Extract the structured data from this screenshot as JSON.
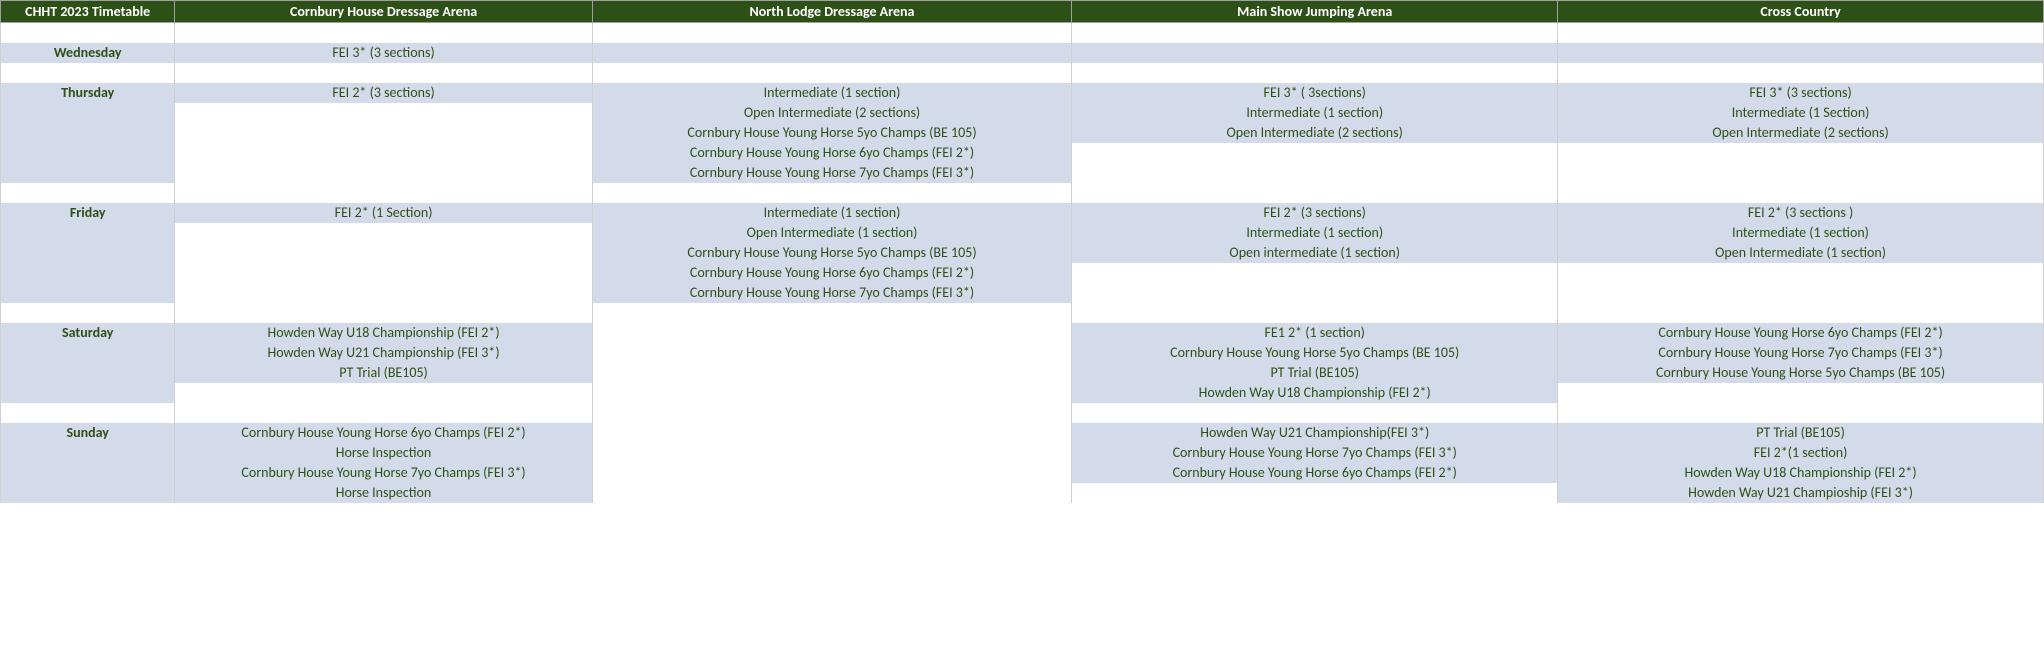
{
  "colors": {
    "header_bg": "#2d5016",
    "header_text": "#ffffff",
    "cell_text": "#2d5016",
    "filled_bg": "#d3dbea",
    "border": "#d0d0d0"
  },
  "headers": {
    "c0": "CHHT 2023 Timetable",
    "c1": "Cornbury House Dressage  Arena",
    "c2": "North Lodge Dressage  Arena",
    "c3": "Main Show Jumping Arena",
    "c4": "Cross Country"
  },
  "rows": [
    {
      "type": "blank"
    },
    {
      "day": "Wednesday",
      "c1": "FEI 3* (3 sections)",
      "c2": "",
      "c3": "",
      "c4": "",
      "fill": [
        true,
        true,
        true,
        true,
        true
      ]
    },
    {
      "type": "blank"
    },
    {
      "day": "Thursday",
      "c1": "FEI 2* (3 sections)",
      "c2": "Intermediate (1 section)",
      "c3": "FEI 3* ( 3sections)",
      "c4": "FEI 3* (3 sections)",
      "fill": [
        true,
        true,
        true,
        true,
        true
      ]
    },
    {
      "day": "",
      "c1": "",
      "c2": "Open Intermediate (2 sections)",
      "c3": "Intermediate (1 section)",
      "c4": "Intermediate (1 Section)",
      "fill": [
        true,
        false,
        true,
        true,
        true
      ]
    },
    {
      "day": "",
      "c1": "",
      "c2": "Cornbury House Young Horse 5yo Champs (BE 105)",
      "c3": "Open Intermediate (2 sections)",
      "c4": "Open Intermediate (2 sections)",
      "fill": [
        true,
        false,
        true,
        true,
        true
      ]
    },
    {
      "day": "",
      "c1": "",
      "c2": "Cornbury House Young Horse 6yo Champs (FEI 2*)",
      "c3": "",
      "c4": "",
      "fill": [
        true,
        false,
        true,
        false,
        false
      ]
    },
    {
      "day": "",
      "c1": "",
      "c2": "Cornbury House Young Horse 7yo Champs (FEI 3*)",
      "c3": "",
      "c4": "",
      "fill": [
        true,
        false,
        true,
        false,
        false
      ]
    },
    {
      "type": "blank"
    },
    {
      "day": "Friday",
      "c1": "FEI 2* (1 Section)",
      "c2": "Intermediate (1 section)",
      "c3": "FEI 2* (3 sections)",
      "c4": "FEI 2* (3 sections )",
      "fill": [
        true,
        true,
        true,
        true,
        true
      ]
    },
    {
      "day": "",
      "c1": "",
      "c2": "Open Intermediate (1 section)",
      "c3": "Intermediate (1 section)",
      "c4": "Intermediate (1 section)",
      "fill": [
        true,
        false,
        true,
        true,
        true
      ]
    },
    {
      "day": "",
      "c1": "",
      "c2": "Cornbury House Young Horse 5yo Champs (BE 105)",
      "c3": "Open intermediate (1 section)",
      "c4": "Open Intermediate (1 section)",
      "fill": [
        true,
        false,
        true,
        true,
        true
      ]
    },
    {
      "day": "",
      "c1": "",
      "c2": "Cornbury House Young Horse 6yo Champs (FEI 2*)",
      "c3": "",
      "c4": "",
      "fill": [
        true,
        false,
        true,
        false,
        false
      ]
    },
    {
      "day": "",
      "c1": "",
      "c2": "Cornbury House Young Horse 7yo Champs (FEI 3*)",
      "c3": "",
      "c4": "",
      "fill": [
        true,
        false,
        true,
        false,
        false
      ]
    },
    {
      "type": "blank"
    },
    {
      "day": "Saturday",
      "c1": "Howden Way U18 Championship (FEI 2*)",
      "c2": "",
      "c3": "FE1 2* (1 section)",
      "c4": "Cornbury House Young Horse 6yo Champs (FEI 2*)",
      "fill": [
        true,
        true,
        false,
        true,
        true
      ]
    },
    {
      "day": "",
      "c1": "Howden Way U21 Championship (FEI 3*)",
      "c2": "",
      "c3": "Cornbury House Young Horse 5yo Champs (BE 105)",
      "c4": "Cornbury House Young Horse 7yo Champs (FEI 3*)",
      "fill": [
        true,
        true,
        false,
        true,
        true
      ]
    },
    {
      "day": "",
      "c1": "PT Trial (BE105)",
      "c2": "",
      "c3": "PT Trial (BE105)",
      "c4": "Cornbury House Young Horse 5yo Champs (BE 105)",
      "fill": [
        true,
        true,
        false,
        true,
        true
      ]
    },
    {
      "day": "",
      "c1": "",
      "c2": "",
      "c3": "Howden Way U18 Championship (FEI 2*)",
      "c4": "",
      "fill": [
        true,
        false,
        false,
        true,
        false
      ]
    },
    {
      "type": "blank"
    },
    {
      "day": "Sunday",
      "c1": "Cornbury House Young Horse 6yo Champs (FEI 2*)",
      "c2": "",
      "c3": "Howden Way U21 Championship(FEI 3*)",
      "c4": "PT Trial (BE105)",
      "fill": [
        true,
        true,
        false,
        true,
        true
      ]
    },
    {
      "day": "",
      "c1": "Horse Inspection",
      "c2": "",
      "c3": "Cornbury House Young Horse 7yo Champs (FEI 3*)",
      "c4": "FEI 2*(1 section)",
      "fill": [
        true,
        true,
        false,
        true,
        true
      ]
    },
    {
      "day": "",
      "c1": "Cornbury House Young Horse 7yo Champs (FEI 3*)",
      "c2": "",
      "c3": "Cornbury House Young Horse 6yo Champs (FEI 2*)",
      "c4": "Howden Way U18 Championship (FEI 2*)",
      "fill": [
        true,
        true,
        false,
        true,
        true
      ]
    },
    {
      "day": "",
      "c1": "Horse Inspection",
      "c2": "",
      "c3": "",
      "c4": "Howden Way U21 Champioship (FEI 3*)",
      "fill": [
        true,
        true,
        false,
        false,
        true
      ]
    }
  ]
}
